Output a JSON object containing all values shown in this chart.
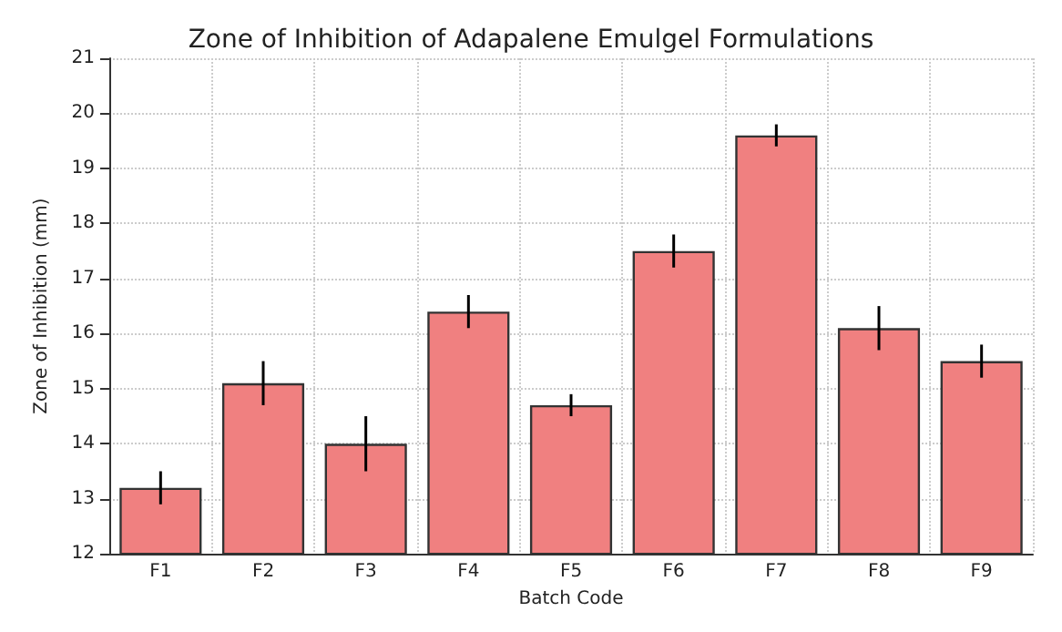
{
  "chart_data": {
    "type": "bar",
    "title": "Zone of Inhibition of Adapalene Emulgel Formulations",
    "xlabel": "Batch Code",
    "ylabel": "Zone of Inhibition (mm)",
    "categories": [
      "F1",
      "F2",
      "F3",
      "F4",
      "F5",
      "F6",
      "F7",
      "F8",
      "F9"
    ],
    "values": [
      13.2,
      15.1,
      14.0,
      16.4,
      14.7,
      17.5,
      19.6,
      16.1,
      15.5
    ],
    "errors": [
      0.3,
      0.4,
      0.5,
      0.3,
      0.2,
      0.3,
      0.2,
      0.4,
      0.3
    ],
    "color": "#f08080",
    "ylim": [
      12,
      21
    ],
    "yticks": [
      12,
      13,
      14,
      15,
      16,
      17,
      18,
      19,
      20,
      21
    ],
    "grid": true
  }
}
